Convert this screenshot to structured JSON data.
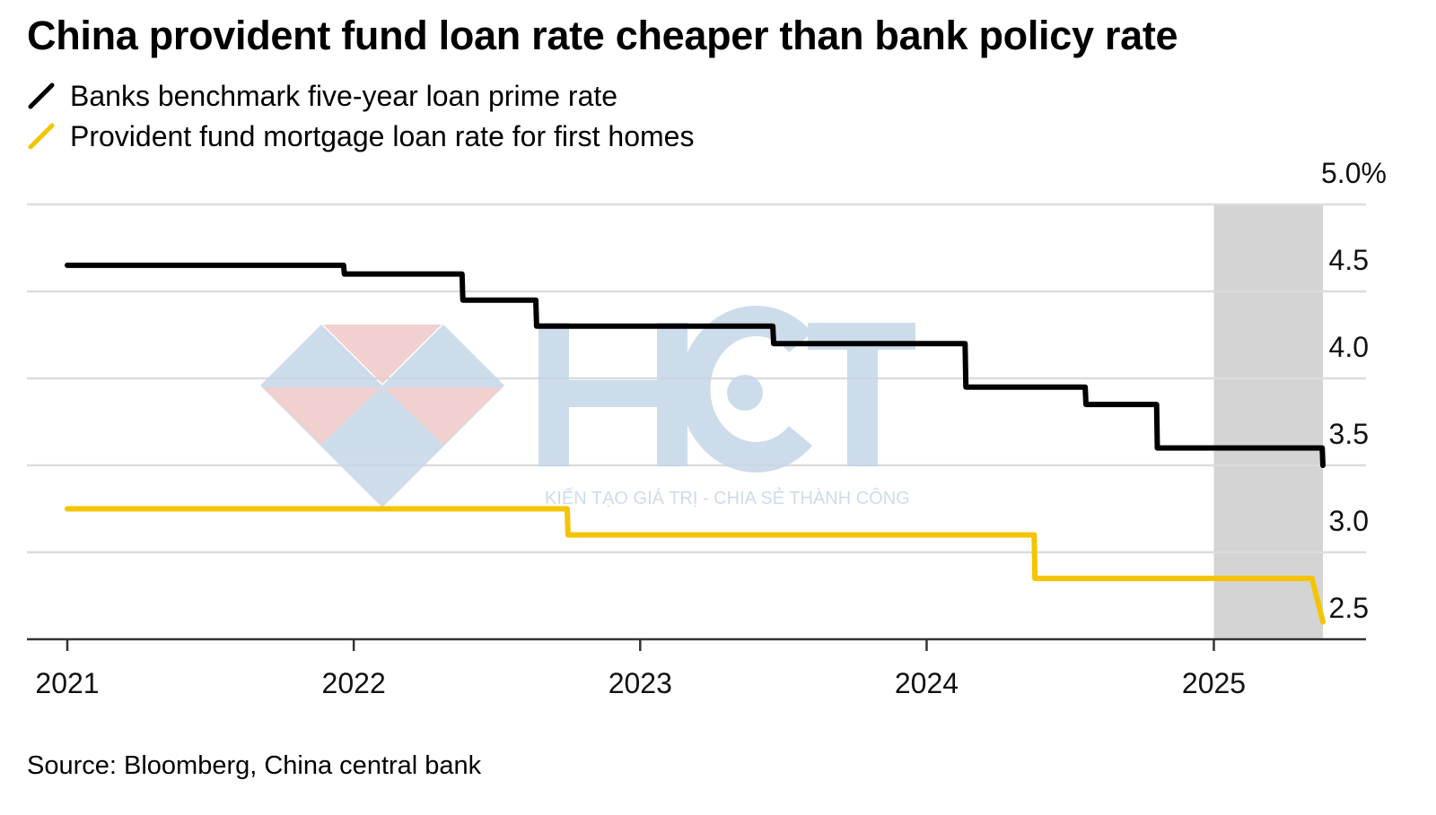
{
  "colors": {
    "series_banks": "#000000",
    "series_provident": "#F5C400",
    "gridline": "#dcdcdc",
    "highlight": "#d4d4d4",
    "axis": "#333333",
    "watermark_blue": "#c5d6e8",
    "watermark_red": "#efc8c8"
  },
  "watermark": {
    "brand": "HCT",
    "tagline": "KIẾN TẠO GIÁ TRỊ - CHIA SẺ THÀNH CÔNG"
  },
  "chart_data": {
    "type": "line",
    "title": "China provident fund loan rate cheaper than bank policy rate",
    "source": "Source: Bloomberg, China central bank",
    "x_axis": {
      "type": "date",
      "range": [
        "2021-01-01",
        "2025-07-15"
      ],
      "tick_labels": [
        "2021",
        "2022",
        "2023",
        "2024",
        "2025"
      ]
    },
    "y_axis": {
      "range": [
        2.5,
        5.0
      ],
      "tick_labels": [
        "5.0%",
        "4.5",
        "4.0",
        "3.5",
        "3.0",
        "2.5"
      ],
      "position": "right",
      "grid": true
    },
    "legend": {
      "placement": "top-left"
    },
    "highlight_band": [
      "2025-01-01",
      "2025-05-20"
    ],
    "series": [
      {
        "name": "Banks benchmark five-year loan prime rate",
        "color": "#000000",
        "points": [
          [
            "2021-01-01",
            4.65
          ],
          [
            "2021-12-19",
            4.65
          ],
          [
            "2021-12-20",
            4.6
          ],
          [
            "2022-05-19",
            4.6
          ],
          [
            "2022-05-20",
            4.45
          ],
          [
            "2022-08-21",
            4.45
          ],
          [
            "2022-08-22",
            4.3
          ],
          [
            "2023-06-19",
            4.3
          ],
          [
            "2023-06-20",
            4.2
          ],
          [
            "2024-02-19",
            4.2
          ],
          [
            "2024-02-20",
            3.95
          ],
          [
            "2024-07-21",
            3.95
          ],
          [
            "2024-07-22",
            3.85
          ],
          [
            "2024-10-20",
            3.85
          ],
          [
            "2024-10-21",
            3.6
          ],
          [
            "2025-05-19",
            3.6
          ],
          [
            "2025-05-20",
            3.5
          ]
        ]
      },
      {
        "name": "Provident fund mortgage loan rate for first homes",
        "color": "#F5C400",
        "points": [
          [
            "2021-01-01",
            3.25
          ],
          [
            "2022-09-30",
            3.25
          ],
          [
            "2022-10-01",
            3.1
          ],
          [
            "2024-05-17",
            3.1
          ],
          [
            "2024-05-18",
            2.85
          ],
          [
            "2025-05-06",
            2.85
          ],
          [
            "2025-05-20",
            2.6
          ]
        ]
      }
    ]
  }
}
